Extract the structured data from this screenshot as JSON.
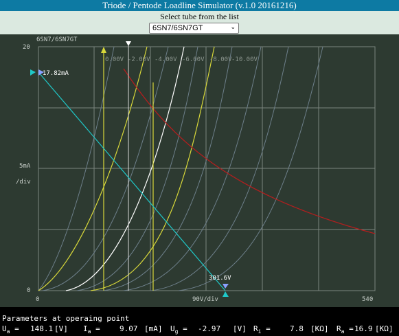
{
  "window": {
    "title": "Triode / Pentode Loadline Simulator (v.1.0 20161216)"
  },
  "selector": {
    "label": "Select tube from the list",
    "selected": "6SN7/6SN7GT",
    "icon": "chevron-down-icon"
  },
  "plot": {
    "tube_name": "6SN7/6SN7GT",
    "y_top_label": "20",
    "y_mid_label": "5mA",
    "y_div_label": "/div",
    "y_zero_label": "0",
    "x_zero_label": "0",
    "x_div_label": "90V/div",
    "x_max_label": "540",
    "curve_labels": [
      "0.00V",
      "-2.00V",
      "-4.00V",
      "-6.00V",
      "-8.00V",
      "-10.00V"
    ],
    "current_marker": "17.82mA",
    "voltage_marker": "301.6V",
    "colors": {
      "background": "#2d3a31",
      "grid": "#7c857e",
      "dissipation": "#b31e1e",
      "loadline": "#1fc8c8",
      "curve_gray": "#6d7f8a",
      "curve_yellow": "#d8d83a",
      "curve_white": "#ffffff"
    }
  },
  "params": {
    "header": "Parameters at operaing point",
    "ua_label": "U",
    "ua_sub": "a",
    "ua_value": "148.1",
    "ua_unit": "[V]",
    "ia_label": "I",
    "ia_sub": "a",
    "ia_value": "9.07",
    "ia_unit": "[mA]",
    "ug_label": "U",
    "ug_sub": "g",
    "ug_value": "-2.97",
    "ug_unit": "[V]",
    "ri_label": "R",
    "ri_sub": "i",
    "ri_value": "7.8",
    "ri_unit": "[KΩ]",
    "ra_label": "R",
    "ra_sub": "a",
    "ra_value": "16.9",
    "ra_unit": "[KΩ]"
  }
}
